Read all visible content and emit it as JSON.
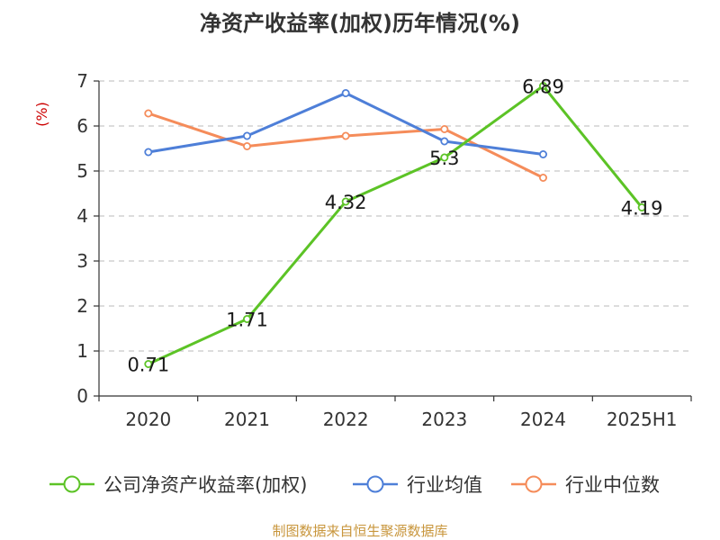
{
  "source_note": "制图数据来自恒生聚源数据库",
  "chart_data": {
    "type": "line",
    "title": "净资产收益率(加权)历年情况(%)",
    "ylabel": "(%)",
    "xlabel": "",
    "categories": [
      "2020",
      "2021",
      "2022",
      "2023",
      "2024",
      "2025H1"
    ],
    "ylim": [
      0,
      7
    ],
    "yticks": [
      0,
      1,
      2,
      3,
      4,
      5,
      6,
      7
    ],
    "grid": true,
    "legend": "bottom",
    "series": [
      {
        "name": "公司净资产收益率(加权)",
        "color": "#5cc326",
        "values": [
          0.71,
          1.71,
          4.32,
          5.3,
          6.89,
          4.19
        ],
        "labels": [
          "0.71",
          "1.71",
          "4.32",
          "5.3",
          "6.89",
          "4.19"
        ]
      },
      {
        "name": "行业均值",
        "color": "#4e7fd8",
        "values": [
          5.42,
          5.78,
          6.73,
          5.66,
          5.37,
          null
        ]
      },
      {
        "name": "行业中位数",
        "color": "#f58c5a",
        "values": [
          6.28,
          5.55,
          5.78,
          5.93,
          4.85,
          null
        ]
      }
    ],
    "colors": {
      "ylabel": "#cc0000",
      "source": "#c8963c",
      "grid": "#c8c8c8",
      "axis": "#333333"
    }
  }
}
